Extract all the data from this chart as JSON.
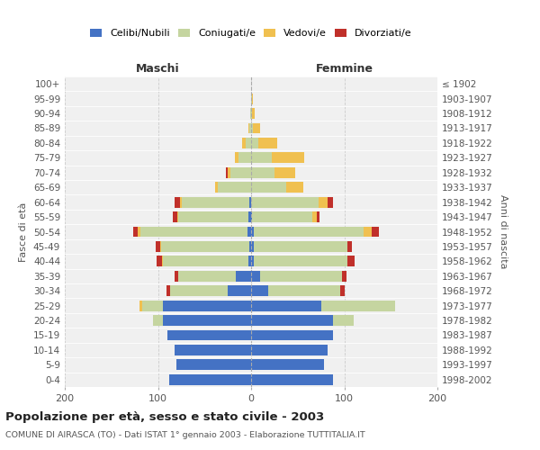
{
  "age_groups": [
    "0-4",
    "5-9",
    "10-14",
    "15-19",
    "20-24",
    "25-29",
    "30-34",
    "35-39",
    "40-44",
    "45-49",
    "50-54",
    "55-59",
    "60-64",
    "65-69",
    "70-74",
    "75-79",
    "80-84",
    "85-89",
    "90-94",
    "95-99",
    "100+"
  ],
  "birth_years": [
    "1998-2002",
    "1993-1997",
    "1988-1992",
    "1983-1987",
    "1978-1982",
    "1973-1977",
    "1968-1972",
    "1963-1967",
    "1958-1962",
    "1953-1957",
    "1948-1952",
    "1943-1947",
    "1938-1942",
    "1933-1937",
    "1928-1932",
    "1923-1927",
    "1918-1922",
    "1913-1917",
    "1908-1912",
    "1903-1907",
    "≤ 1902"
  ],
  "maschi": {
    "celibi": [
      88,
      80,
      82,
      90,
      95,
      95,
      25,
      16,
      3,
      2,
      4,
      3,
      2,
      0,
      0,
      0,
      0,
      0,
      0,
      0,
      0
    ],
    "coniugati": [
      0,
      0,
      0,
      0,
      10,
      22,
      62,
      62,
      92,
      95,
      115,
      75,
      72,
      36,
      22,
      14,
      6,
      2,
      1,
      0,
      0
    ],
    "vedovi": [
      0,
      0,
      0,
      0,
      0,
      3,
      0,
      0,
      1,
      1,
      3,
      1,
      2,
      3,
      3,
      3,
      4,
      1,
      0,
      0,
      0
    ],
    "divorziati": [
      0,
      0,
      0,
      0,
      0,
      0,
      4,
      4,
      5,
      4,
      5,
      5,
      6,
      0,
      2,
      0,
      0,
      0,
      0,
      0,
      0
    ]
  },
  "femmine": {
    "nubili": [
      88,
      78,
      82,
      88,
      88,
      75,
      18,
      10,
      3,
      3,
      3,
      1,
      0,
      0,
      0,
      0,
      0,
      0,
      0,
      0,
      0
    ],
    "coniugate": [
      0,
      0,
      0,
      0,
      22,
      80,
      78,
      88,
      100,
      100,
      118,
      65,
      72,
      38,
      25,
      22,
      8,
      2,
      1,
      1,
      0
    ],
    "vedove": [
      0,
      0,
      0,
      0,
      0,
      0,
      0,
      0,
      0,
      0,
      8,
      5,
      10,
      18,
      22,
      35,
      20,
      8,
      3,
      1,
      0
    ],
    "divorziate": [
      0,
      0,
      0,
      0,
      0,
      0,
      4,
      4,
      8,
      5,
      8,
      2,
      6,
      0,
      0,
      0,
      0,
      0,
      0,
      0,
      0
    ]
  },
  "colors": {
    "celibi_nubili": "#4472c4",
    "coniugati": "#c5d5a0",
    "vedovi": "#f0c050",
    "divorziati": "#c0302a"
  },
  "title": "Popolazione per età, sesso e stato civile - 2003",
  "subtitle": "COMUNE DI AIRASCA (TO) - Dati ISTAT 1° gennaio 2003 - Elaborazione TUTTITALIA.IT",
  "xlabel_maschi": "Maschi",
  "xlabel_femmine": "Femmine",
  "ylabel_left": "Fasce di età",
  "ylabel_right": "Anni di nascita",
  "xlim": 200,
  "bg_color": "#f0f0f0",
  "grid_color": "#cccccc"
}
